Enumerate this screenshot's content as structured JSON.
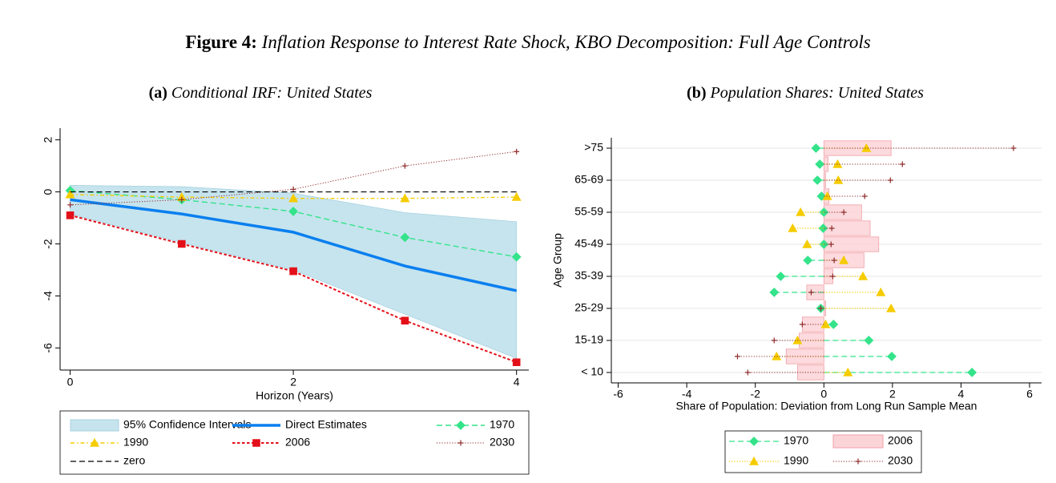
{
  "figure": {
    "label": "Figure 4:",
    "title": "Inflation Response to Interest Rate Shock, KBO Decomposition: Full Age Controls"
  },
  "chart_data": [
    {
      "type": "line",
      "panel": "(a)",
      "title": "Conditional IRF: United States",
      "x_label": "Horizon (Years)",
      "x": [
        0,
        1,
        2,
        3,
        4
      ],
      "xlim": [
        -0.09,
        4.11
      ],
      "xticks": [
        0,
        2,
        4
      ],
      "ylim": [
        -6.85,
        2.45
      ],
      "yticks": [
        2,
        0,
        -2,
        -4,
        -6
      ],
      "legend": "bottom",
      "series": [
        {
          "name": "95% Confidence Intervals",
          "kind": "band",
          "color": "#c6e4ee",
          "edgecolor": "#a8d2e0",
          "lower": [
            -0.85,
            -1.95,
            -3.0,
            -4.7,
            -6.4
          ],
          "upper": [
            0.25,
            0.2,
            -0.05,
            -0.8,
            -1.15
          ]
        },
        {
          "name": "Direct Estimates",
          "color": "#0a7fef",
          "dash": "solid",
          "linewidth": 3.5,
          "marker": "none",
          "values": [
            -0.3,
            -0.85,
            -1.55,
            -2.85,
            -3.8
          ]
        },
        {
          "name": "1970",
          "color": "#34e38a",
          "dash": "dashed",
          "linewidth": 1.4,
          "marker": "diamond",
          "values": [
            0.05,
            -0.3,
            -0.75,
            -1.75,
            -2.5
          ]
        },
        {
          "name": "1990",
          "color": "#f5cc00",
          "dash": "dashdot",
          "linewidth": 1.4,
          "marker": "triangle",
          "values": [
            -0.1,
            -0.2,
            -0.25,
            -0.25,
            -0.2
          ]
        },
        {
          "name": "2006",
          "color": "#e3101a",
          "dash": "shortdash",
          "linewidth": 2,
          "marker": "square",
          "values": [
            -0.9,
            -2.0,
            -3.05,
            -4.95,
            -6.55
          ]
        },
        {
          "name": "2030",
          "color": "#8f2b2b",
          "dash": "dotted",
          "linewidth": 1,
          "marker": "plus",
          "values": [
            -0.5,
            -0.3,
            0.1,
            1.0,
            1.55
          ]
        },
        {
          "name": "zero",
          "color": "#000000",
          "dash": "dashed",
          "linewidth": 1.2,
          "marker": "none",
          "values": [
            0,
            0,
            0,
            0,
            0
          ]
        }
      ]
    },
    {
      "type": "dot",
      "panel": "(b)",
      "title": "Population Shares: United States",
      "x_label": "Share of Population: Deviation from Long Run Sample Mean",
      "y_label": "Age Group",
      "categories": [
        "< 10",
        null,
        "15-19",
        null,
        "25-29",
        null,
        "35-39",
        null,
        "45-49",
        null,
        "55-59",
        null,
        "65-69",
        null,
        ">75"
      ],
      "xlim": [
        -6.2,
        6.35
      ],
      "xticks": [
        -6,
        -4,
        -2,
        0,
        2,
        4,
        6
      ],
      "grid": true,
      "legend": "bottom",
      "series": [
        {
          "name": "1970",
          "color": "#34e38a",
          "dash": "dashed",
          "linewidth": 1.2,
          "marker": "diamond",
          "values": [
            4.32,
            1.98,
            1.31,
            0.28,
            -0.09,
            -1.45,
            -1.26,
            -0.47,
            0,
            -0.02,
            0,
            -0.07,
            -0.19,
            -0.12,
            -0.23
          ]
        },
        {
          "name": "2006",
          "color": "#fbd4d7",
          "edgecolor": "#f0a0a8",
          "marker": "bar",
          "values": [
            -0.77,
            -1.1,
            -0.72,
            -0.63,
            0.05,
            -0.5,
            0.26,
            1.17,
            1.6,
            1.35,
            1.1,
            0.15,
            0.05,
            0.12,
            1.96
          ]
        },
        {
          "name": "1990",
          "color": "#f5cc00",
          "dash": "dotted",
          "linewidth": 1.2,
          "marker": "triangle",
          "values": [
            0.7,
            -1.38,
            -0.77,
            0.05,
            1.96,
            1.66,
            1.14,
            0.58,
            -0.49,
            -0.91,
            -0.68,
            0.1,
            0.42,
            0.4,
            1.24
          ]
        },
        {
          "name": "2030",
          "color": "#8f2b2b",
          "dash": "dotted",
          "linewidth": 1,
          "marker": "plus",
          "values": [
            -2.22,
            -2.52,
            -1.45,
            -0.63,
            -0.09,
            -0.37,
            0.26,
            0.3,
            0.21,
            0.23,
            0.58,
            1.19,
            1.94,
            2.29,
            5.53
          ]
        }
      ]
    }
  ]
}
